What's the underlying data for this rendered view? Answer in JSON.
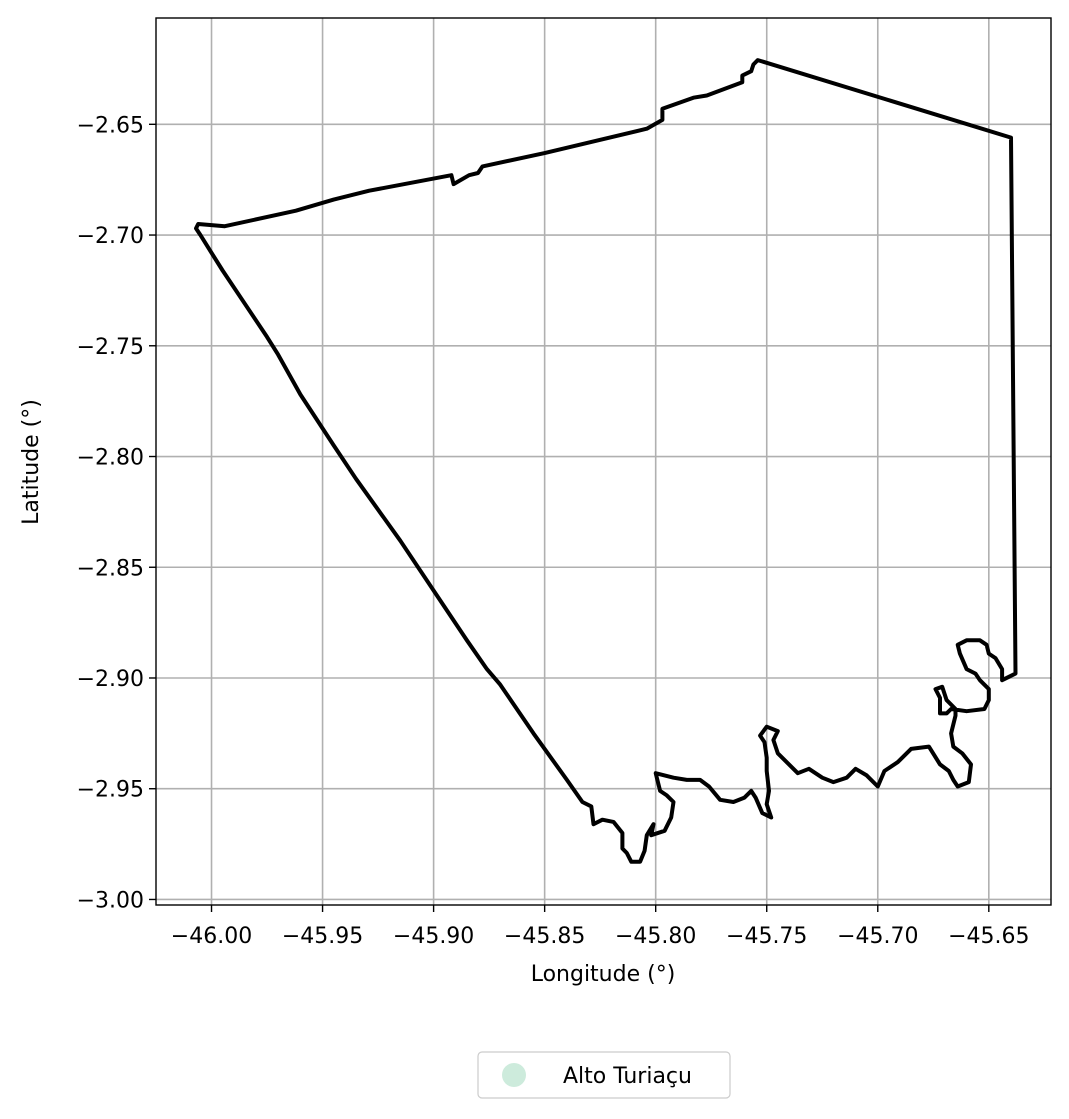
{
  "chart_data": {
    "type": "map",
    "xlabel": "Longitude (°)",
    "ylabel": "Latitude (°)",
    "xlim": [
      -46.025,
      -45.622
    ],
    "ylim": [
      -3.0025,
      -2.602
    ],
    "x_ticks": [
      -46.0,
      -45.95,
      -45.9,
      -45.85,
      -45.8,
      -45.75,
      -45.7,
      -45.65
    ],
    "x_tick_labels": [
      "−46.00",
      "−45.95",
      "−45.90",
      "−45.85",
      "−45.80",
      "−45.75",
      "−45.70",
      "−45.65"
    ],
    "y_ticks": [
      -2.65,
      -2.7,
      -2.75,
      -2.8,
      -2.85,
      -2.9,
      -2.95,
      -3.0
    ],
    "y_tick_labels": [
      "−2.65",
      "−2.70",
      "−2.75",
      "−2.80",
      "−2.85",
      "−2.90",
      "−2.95",
      "−3.00"
    ],
    "grid": true,
    "legend_position": "bottom-center",
    "legend": [
      {
        "label": "Alto Turiaçu",
        "color": "#cdebdc"
      }
    ],
    "series": [
      {
        "name": "Alto Turiaçu",
        "outline_color": "#000000",
        "points": [
          [
            -46.006,
            -2.695
          ],
          [
            -45.994,
            -2.696
          ],
          [
            -45.962,
            -2.689
          ],
          [
            -45.945,
            -2.684
          ],
          [
            -45.929,
            -2.68
          ],
          [
            -45.892,
            -2.673
          ],
          [
            -45.891,
            -2.677
          ],
          [
            -45.884,
            -2.673
          ],
          [
            -45.88,
            -2.672
          ],
          [
            -45.878,
            -2.669
          ],
          [
            -45.85,
            -2.663
          ],
          [
            -45.804,
            -2.652
          ],
          [
            -45.797,
            -2.648
          ],
          [
            -45.797,
            -2.643
          ],
          [
            -45.783,
            -2.638
          ],
          [
            -45.777,
            -2.637
          ],
          [
            -45.761,
            -2.631
          ],
          [
            -45.761,
            -2.628
          ],
          [
            -45.757,
            -2.626
          ],
          [
            -45.756,
            -2.623
          ],
          [
            -45.754,
            -2.621
          ],
          [
            -45.64,
            -2.656
          ],
          [
            -45.638,
            -2.898
          ],
          [
            -45.644,
            -2.901
          ],
          [
            -45.644,
            -2.896
          ],
          [
            -45.647,
            -2.891
          ],
          [
            -45.65,
            -2.889
          ],
          [
            -45.651,
            -2.885
          ],
          [
            -45.654,
            -2.883
          ],
          [
            -45.66,
            -2.883
          ],
          [
            -45.664,
            -2.885
          ],
          [
            -45.663,
            -2.889
          ],
          [
            -45.66,
            -2.896
          ],
          [
            -45.656,
            -2.898
          ],
          [
            -45.654,
            -2.901
          ],
          [
            -45.65,
            -2.905
          ],
          [
            -45.65,
            -2.91
          ],
          [
            -45.652,
            -2.914
          ],
          [
            -45.66,
            -2.915
          ],
          [
            -45.667,
            -2.914
          ],
          [
            -45.669,
            -2.916
          ],
          [
            -45.672,
            -2.916
          ],
          [
            -45.672,
            -2.909
          ],
          [
            -45.674,
            -2.905
          ],
          [
            -45.671,
            -2.904
          ],
          [
            -45.669,
            -2.91
          ],
          [
            -45.665,
            -2.914
          ],
          [
            -45.665,
            -2.917
          ],
          [
            -45.667,
            -2.925
          ],
          [
            -45.666,
            -2.931
          ],
          [
            -45.662,
            -2.934
          ],
          [
            -45.658,
            -2.939
          ],
          [
            -45.659,
            -2.947
          ],
          [
            -45.664,
            -2.949
          ],
          [
            -45.666,
            -2.946
          ],
          [
            -45.668,
            -2.942
          ],
          [
            -45.672,
            -2.939
          ],
          [
            -45.677,
            -2.931
          ],
          [
            -45.685,
            -2.932
          ],
          [
            -45.691,
            -2.938
          ],
          [
            -45.697,
            -2.942
          ],
          [
            -45.7,
            -2.949
          ],
          [
            -45.705,
            -2.944
          ],
          [
            -45.71,
            -2.941
          ],
          [
            -45.714,
            -2.945
          ],
          [
            -45.72,
            -2.947
          ],
          [
            -45.725,
            -2.945
          ],
          [
            -45.731,
            -2.941
          ],
          [
            -45.736,
            -2.943
          ],
          [
            -45.745,
            -2.934
          ],
          [
            -45.747,
            -2.928
          ],
          [
            -45.745,
            -2.924
          ],
          [
            -45.75,
            -2.922
          ],
          [
            -45.753,
            -2.926
          ],
          [
            -45.751,
            -2.929
          ],
          [
            -45.75,
            -2.936
          ],
          [
            -45.75,
            -2.942
          ],
          [
            -45.749,
            -2.951
          ],
          [
            -45.75,
            -2.957
          ],
          [
            -45.748,
            -2.963
          ],
          [
            -45.752,
            -2.961
          ],
          [
            -45.755,
            -2.954
          ],
          [
            -45.757,
            -2.951
          ],
          [
            -45.76,
            -2.954
          ],
          [
            -45.765,
            -2.956
          ],
          [
            -45.771,
            -2.955
          ],
          [
            -45.776,
            -2.949
          ],
          [
            -45.78,
            -2.946
          ],
          [
            -45.786,
            -2.946
          ],
          [
            -45.792,
            -2.945
          ],
          [
            -45.8,
            -2.943
          ],
          [
            -45.798,
            -2.951
          ],
          [
            -45.795,
            -2.953
          ],
          [
            -45.792,
            -2.956
          ],
          [
            -45.793,
            -2.963
          ],
          [
            -45.796,
            -2.969
          ],
          [
            -45.802,
            -2.971
          ],
          [
            -45.801,
            -2.966
          ],
          [
            -45.804,
            -2.971
          ],
          [
            -45.805,
            -2.978
          ],
          [
            -45.807,
            -2.983
          ],
          [
            -45.811,
            -2.983
          ],
          [
            -45.813,
            -2.979
          ],
          [
            -45.815,
            -2.977
          ],
          [
            -45.815,
            -2.97
          ],
          [
            -45.819,
            -2.965
          ],
          [
            -45.824,
            -2.964
          ],
          [
            -45.828,
            -2.966
          ],
          [
            -45.829,
            -2.958
          ],
          [
            -45.833,
            -2.956
          ],
          [
            -45.84,
            -2.946
          ],
          [
            -45.855,
            -2.925
          ],
          [
            -45.87,
            -2.903
          ],
          [
            -45.876,
            -2.896
          ],
          [
            -45.885,
            -2.883
          ],
          [
            -45.895,
            -2.868
          ],
          [
            -45.915,
            -2.838
          ],
          [
            -45.935,
            -2.81
          ],
          [
            -45.945,
            -2.795
          ],
          [
            -45.96,
            -2.772
          ],
          [
            -45.97,
            -2.754
          ],
          [
            -45.975,
            -2.746
          ],
          [
            -45.985,
            -2.731
          ],
          [
            -45.995,
            -2.716
          ],
          [
            -46.0,
            -2.708
          ],
          [
            -46.005,
            -2.7
          ],
          [
            -46.007,
            -2.697
          ],
          [
            -46.006,
            -2.695
          ]
        ]
      }
    ]
  }
}
